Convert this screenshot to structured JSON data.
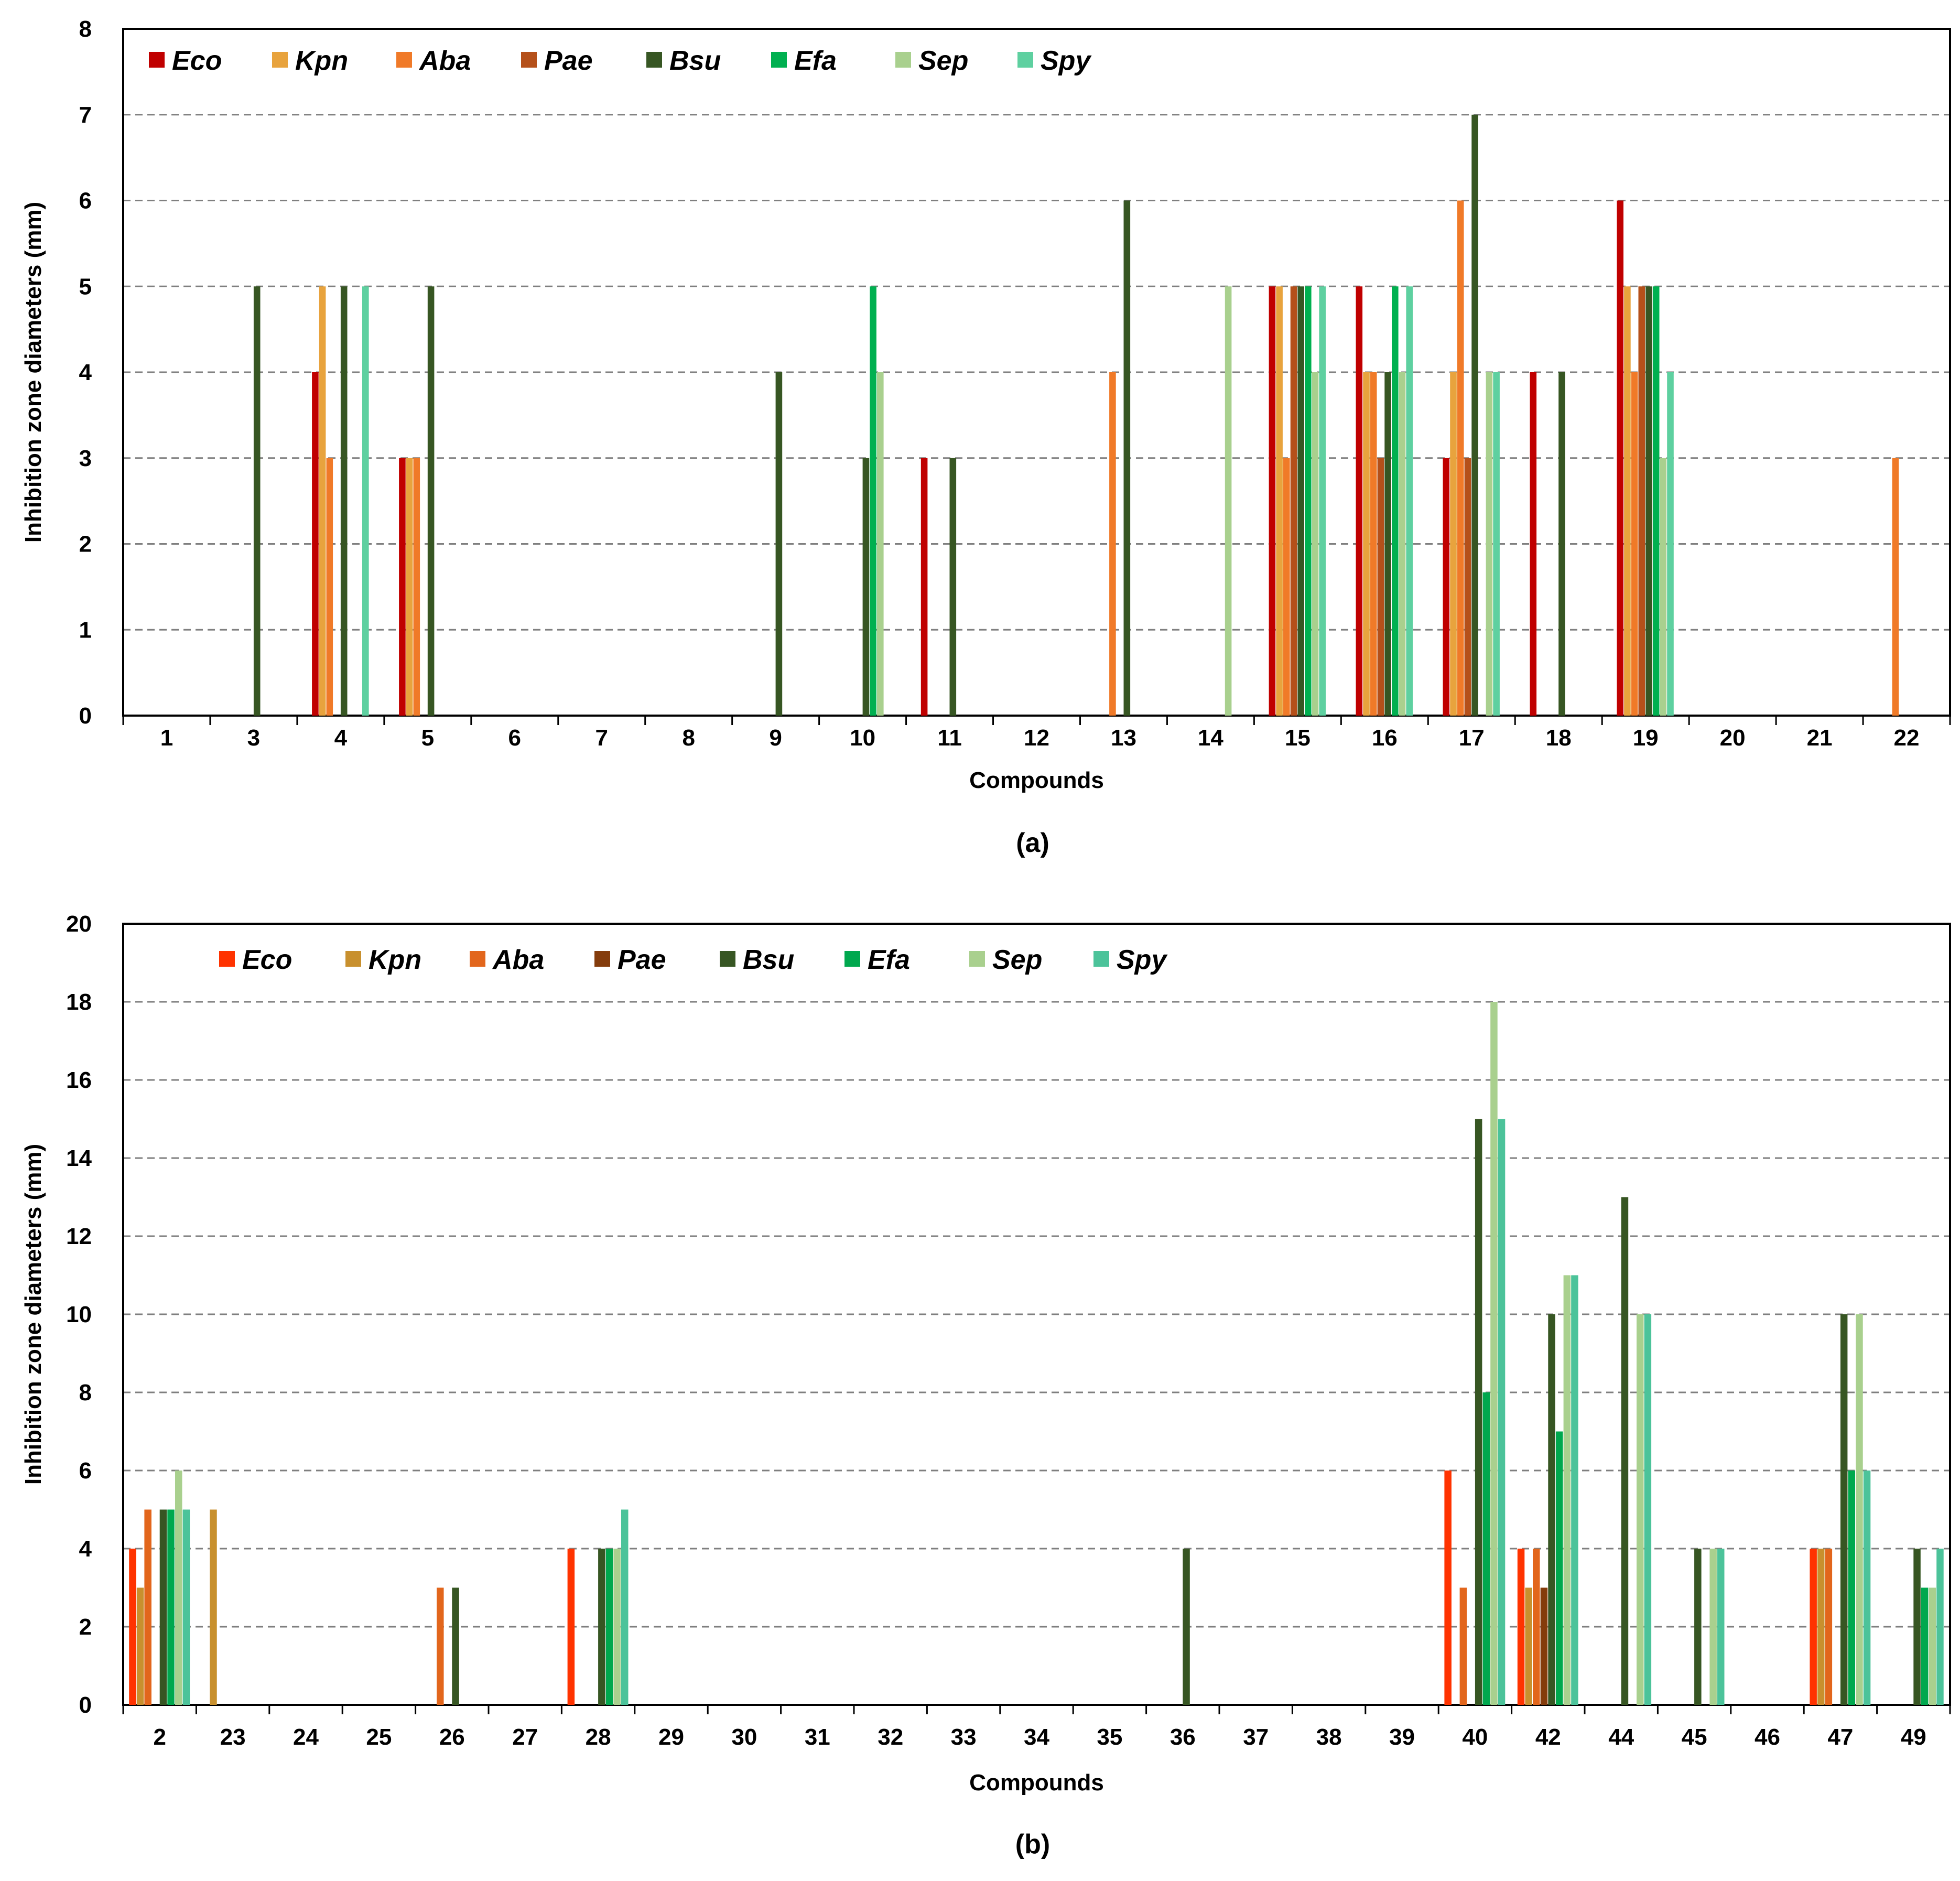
{
  "chart_data": [
    {
      "type": "bar",
      "panel_label": "(a)",
      "xlabel": "Compounds",
      "ylabel": "Inhibition zone diameters (mm)",
      "ylim": [
        0,
        8
      ],
      "yticks": [
        0,
        1,
        2,
        3,
        4,
        5,
        6,
        7,
        8
      ],
      "grid": "dashed horizontal",
      "legend_position": "top-left",
      "categories": [
        "1",
        "3",
        "4",
        "5",
        "6",
        "7",
        "8",
        "9",
        "10",
        "11",
        "12",
        "13",
        "14",
        "15",
        "16",
        "17",
        "18",
        "19",
        "20",
        "21",
        "22"
      ],
      "series": [
        {
          "name": "Eco",
          "color": "#C00000",
          "values": [
            0,
            0,
            4,
            3,
            0,
            0,
            0,
            0,
            0,
            3,
            0,
            0,
            0,
            5,
            5,
            3,
            4,
            6,
            0,
            0,
            0
          ]
        },
        {
          "name": "Kpn",
          "color": "#E8A33D",
          "values": [
            0,
            0,
            5,
            3,
            0,
            0,
            0,
            0,
            0,
            0,
            0,
            0,
            0,
            5,
            4,
            4,
            0,
            5,
            0,
            0,
            0
          ]
        },
        {
          "name": "Aba",
          "color": "#F07A28",
          "values": [
            0,
            0,
            3,
            3,
            0,
            0,
            0,
            0,
            0,
            0,
            0,
            4,
            0,
            3,
            4,
            6,
            0,
            4,
            0,
            0,
            3
          ]
        },
        {
          "name": "Pae",
          "color": "#B5501A",
          "values": [
            0,
            0,
            0,
            0,
            0,
            0,
            0,
            0,
            0,
            0,
            0,
            0,
            0,
            5,
            3,
            3,
            0,
            5,
            0,
            0,
            0
          ]
        },
        {
          "name": "Bsu",
          "color": "#375623",
          "values": [
            0,
            5,
            5,
            5,
            0,
            0,
            0,
            4,
            3,
            3,
            0,
            6,
            0,
            5,
            4,
            7,
            4,
            5,
            0,
            0,
            0
          ]
        },
        {
          "name": "Efa",
          "color": "#00B050",
          "values": [
            0,
            0,
            0,
            0,
            0,
            0,
            0,
            0,
            5,
            0,
            0,
            0,
            0,
            5,
            5,
            0,
            0,
            5,
            0,
            0,
            0
          ]
        },
        {
          "name": "Sep",
          "color": "#A9D08E",
          "values": [
            0,
            0,
            0,
            0,
            0,
            0,
            0,
            0,
            4,
            0,
            0,
            0,
            5,
            4,
            4,
            4,
            0,
            3,
            0,
            0,
            0
          ]
        },
        {
          "name": "Spy",
          "color": "#5ED0A0",
          "values": [
            0,
            0,
            5,
            0,
            0,
            0,
            0,
            0,
            0,
            0,
            0,
            0,
            0,
            5,
            5,
            4,
            0,
            4,
            0,
            0,
            0
          ]
        }
      ]
    },
    {
      "type": "bar",
      "panel_label": "(b)",
      "xlabel": "Compounds",
      "ylabel": "Inhibition zone diameters (mm)",
      "ylim": [
        0,
        20
      ],
      "yticks": [
        0,
        2,
        4,
        6,
        8,
        10,
        12,
        14,
        16,
        18,
        20
      ],
      "grid": "dashed horizontal",
      "legend_position": "top-left",
      "categories": [
        "2",
        "23",
        "24",
        "25",
        "26",
        "27",
        "28",
        "29",
        "30",
        "31",
        "32",
        "33",
        "34",
        "35",
        "36",
        "37",
        "38",
        "39",
        "40",
        "42",
        "44",
        "45",
        "46",
        "47",
        "49"
      ],
      "series": [
        {
          "name": "Eco",
          "color": "#FF3300",
          "values": [
            4,
            0,
            0,
            0,
            0,
            0,
            4,
            0,
            0,
            0,
            0,
            0,
            0,
            0,
            0,
            0,
            0,
            0,
            6,
            4,
            0,
            0,
            0,
            4,
            0
          ]
        },
        {
          "name": "Kpn",
          "color": "#C8902E",
          "values": [
            3,
            5,
            0,
            0,
            0,
            0,
            0,
            0,
            0,
            0,
            0,
            0,
            0,
            0,
            0,
            0,
            0,
            0,
            0,
            3,
            0,
            0,
            0,
            4,
            0
          ]
        },
        {
          "name": "Aba",
          "color": "#E2661C",
          "values": [
            5,
            0,
            0,
            0,
            3,
            0,
            0,
            0,
            0,
            0,
            0,
            0,
            0,
            0,
            0,
            0,
            0,
            0,
            3,
            4,
            0,
            0,
            0,
            4,
            0
          ]
        },
        {
          "name": "Pae",
          "color": "#843C0C",
          "values": [
            0,
            0,
            0,
            0,
            0,
            0,
            0,
            0,
            0,
            0,
            0,
            0,
            0,
            0,
            0,
            0,
            0,
            0,
            0,
            3,
            0,
            0,
            0,
            0,
            0
          ]
        },
        {
          "name": "Bsu",
          "color": "#375623",
          "values": [
            5,
            0,
            0,
            0,
            3,
            0,
            4,
            0,
            0,
            0,
            0,
            0,
            0,
            0,
            4,
            0,
            0,
            0,
            15,
            10,
            13,
            4,
            0,
            10,
            4
          ]
        },
        {
          "name": "Efa",
          "color": "#00A84E",
          "values": [
            5,
            0,
            0,
            0,
            0,
            0,
            4,
            0,
            0,
            0,
            0,
            0,
            0,
            0,
            0,
            0,
            0,
            0,
            8,
            7,
            0,
            0,
            0,
            6,
            3
          ]
        },
        {
          "name": "Sep",
          "color": "#A9D08E",
          "values": [
            6,
            0,
            0,
            0,
            0,
            0,
            4,
            0,
            0,
            0,
            0,
            0,
            0,
            0,
            0,
            0,
            0,
            0,
            18,
            11,
            10,
            4,
            0,
            10,
            3
          ]
        },
        {
          "name": "Spy",
          "color": "#4CC39A",
          "values": [
            5,
            0,
            0,
            0,
            0,
            0,
            5,
            0,
            0,
            0,
            0,
            0,
            0,
            0,
            0,
            0,
            0,
            0,
            15,
            11,
            10,
            4,
            0,
            6,
            4
          ]
        }
      ]
    }
  ]
}
